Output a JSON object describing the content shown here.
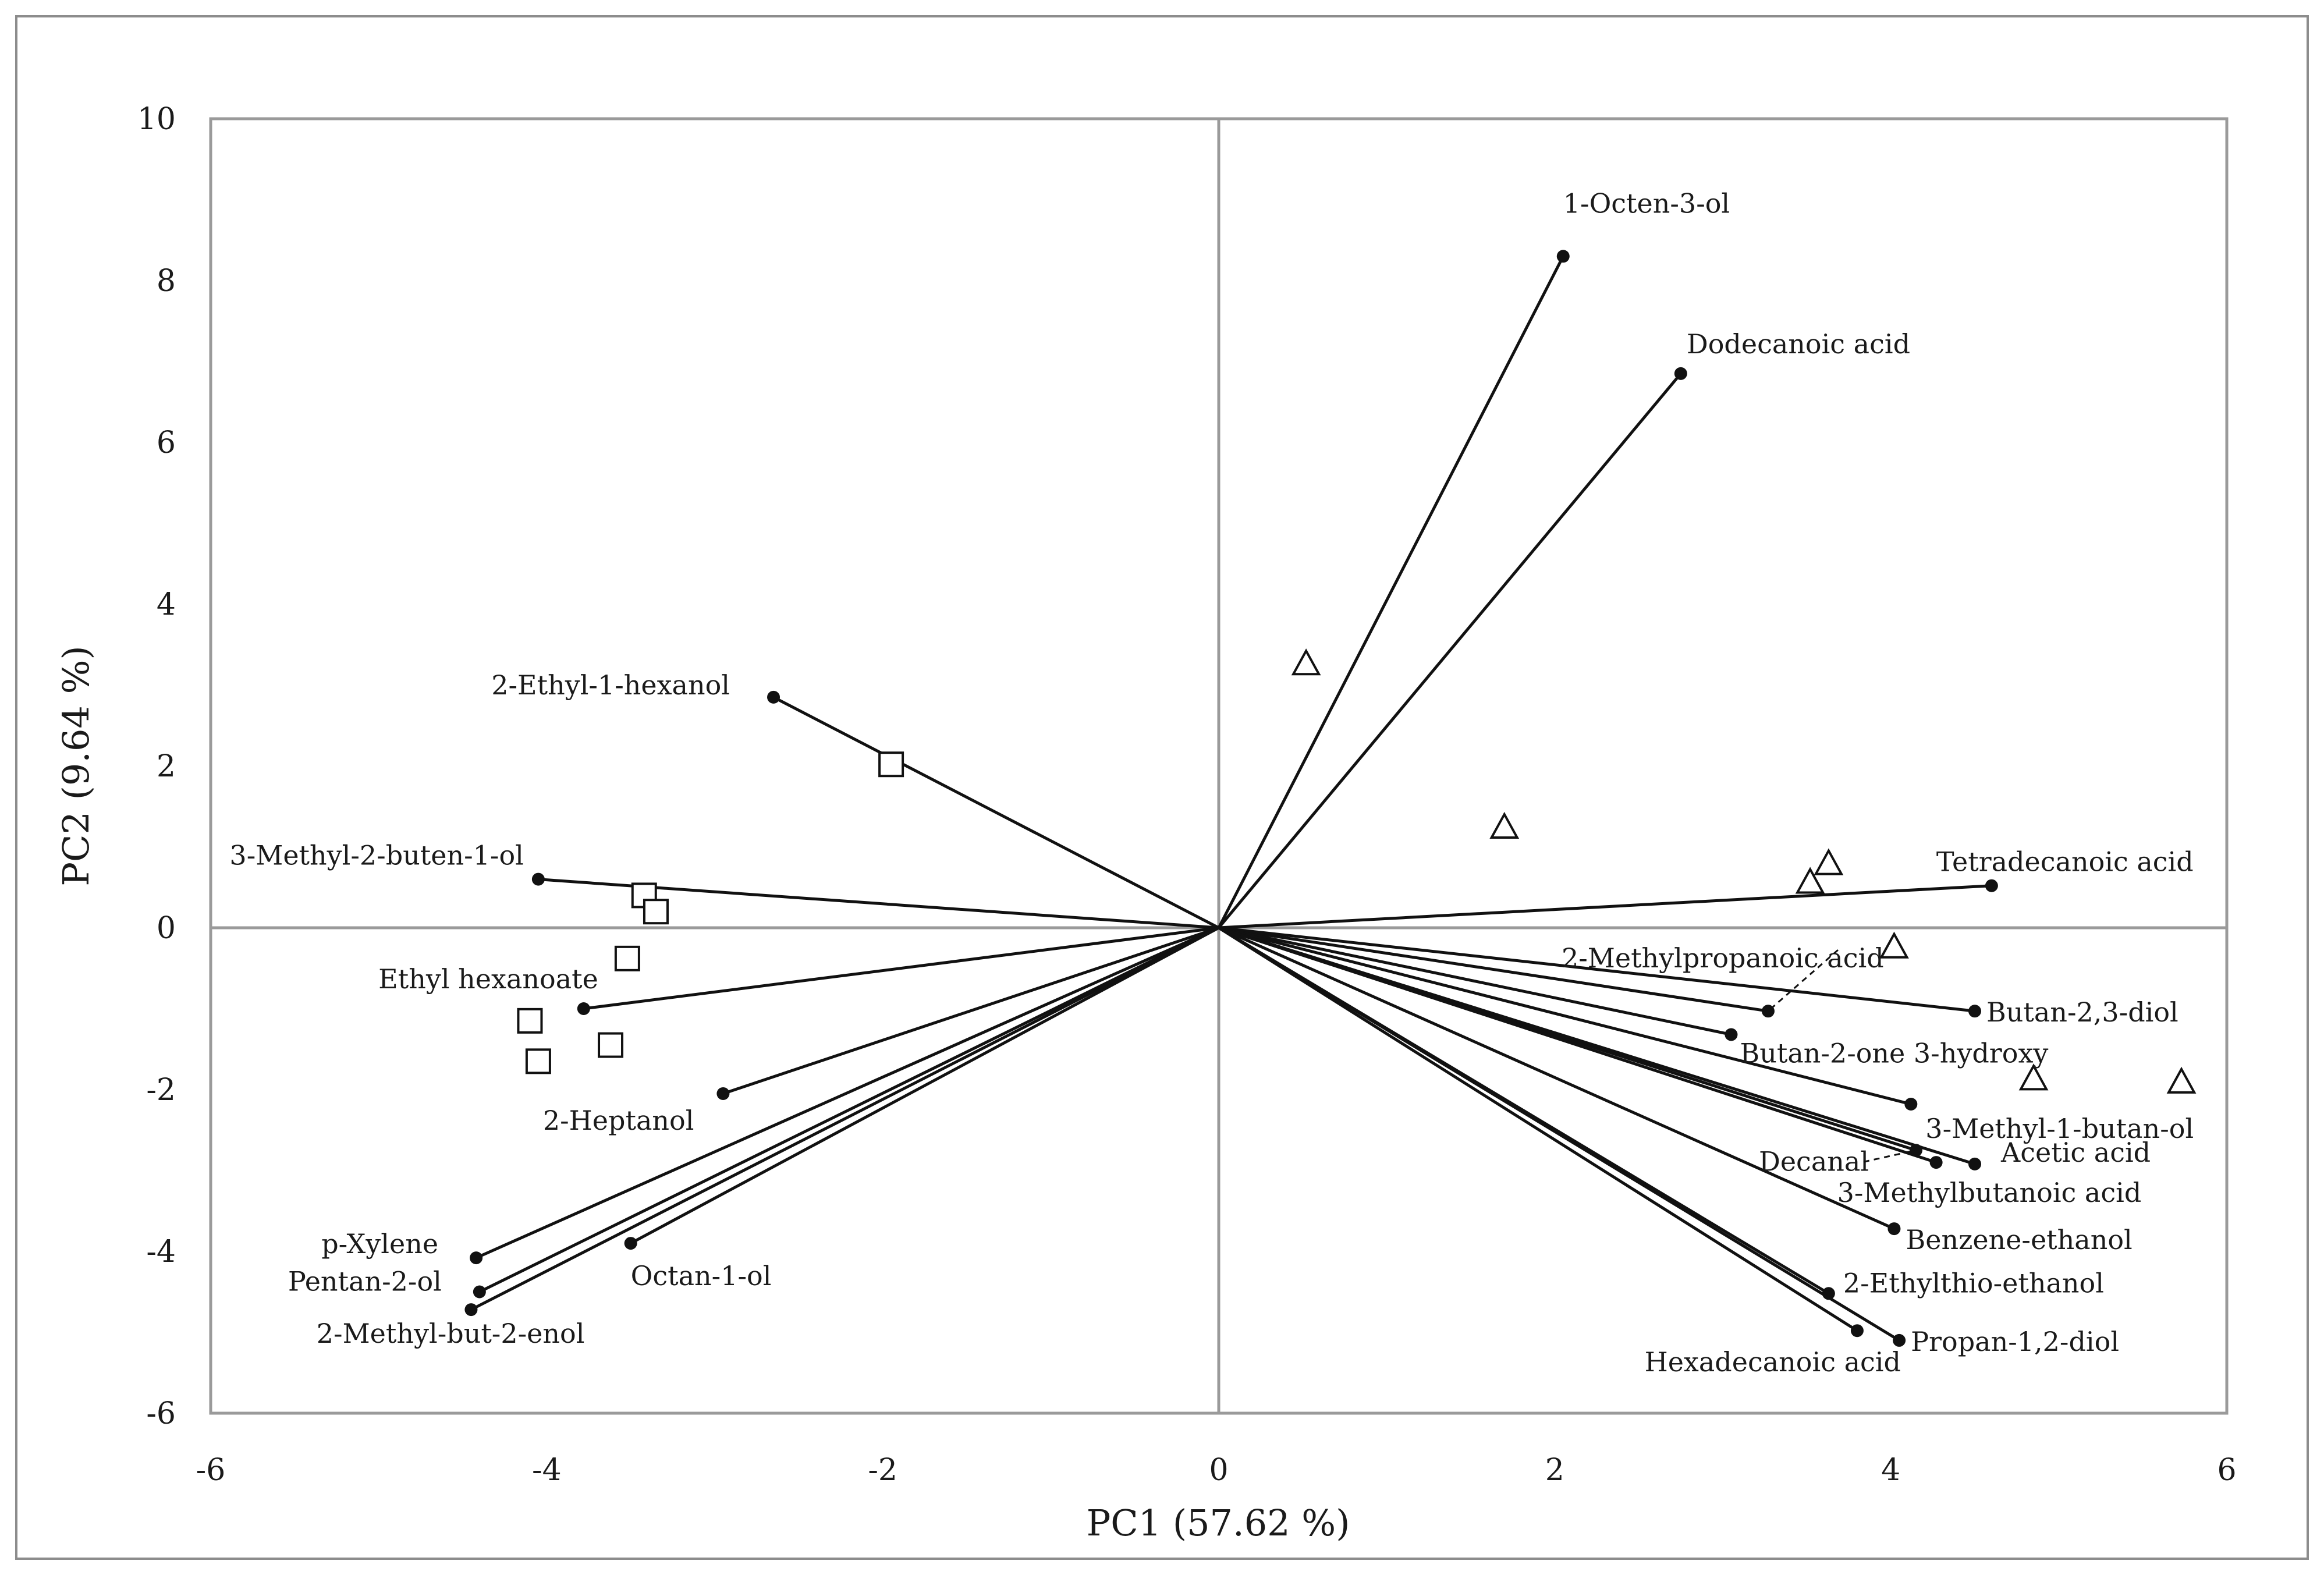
{
  "chart_data": {
    "type": "scatter",
    "subtype": "pca-biplot",
    "xlabel": "PC1 (57.62 %)",
    "ylabel": "PC2 (9.64 %)",
    "xlim": [
      -6,
      6
    ],
    "ylim": [
      -6,
      10
    ],
    "xticks": [
      -6,
      -4,
      -2,
      0,
      2,
      4,
      6
    ],
    "yticks": [
      -6,
      -4,
      -2,
      0,
      2,
      4,
      6,
      8,
      10
    ],
    "loadings": [
      {
        "name": "1-Octen-3-ol",
        "x": 2.05,
        "y": 8.3
      },
      {
        "name": "Dodecanoic acid",
        "x": 2.75,
        "y": 6.85
      },
      {
        "name": "Tetradecanoic acid",
        "x": 4.6,
        "y": 0.52
      },
      {
        "name": "2-Methylpropanoic acid",
        "x": 3.27,
        "y": -1.03
      },
      {
        "name": "Butan-2,3-diol",
        "x": 4.5,
        "y": -1.03
      },
      {
        "name": "Butan-2-one 3-hydroxy",
        "x": 3.05,
        "y": -1.32
      },
      {
        "name": "3-Methyl-1-butan-ol",
        "x": 4.12,
        "y": -2.18
      },
      {
        "name": "Decanal",
        "x": 4.15,
        "y": -2.75
      },
      {
        "name": "Acetic acid",
        "x": 4.5,
        "y": -2.92
      },
      {
        "name": "3-Methylbutanoic acid",
        "x": 4.27,
        "y": -2.9
      },
      {
        "name": "Benzene-ethanol",
        "x": 4.02,
        "y": -3.72
      },
      {
        "name": "2-Ethylthio-ethanol",
        "x": 3.63,
        "y": -4.52
      },
      {
        "name": "Propan-1,2-diol",
        "x": 4.05,
        "y": -5.1
      },
      {
        "name": "Hexadecanoic acid",
        "x": 3.8,
        "y": -4.98
      },
      {
        "name": "2-Ethyl-1-hexanol",
        "x": -2.65,
        "y": 2.85
      },
      {
        "name": "3-Methyl-2-buten-1-ol",
        "x": -4.05,
        "y": 0.6
      },
      {
        "name": "Ethyl hexanoate",
        "x": -3.78,
        "y": -1.0
      },
      {
        "name": "2-Heptanol",
        "x": -2.95,
        "y": -2.05
      },
      {
        "name": "p-Xylene",
        "x": -4.42,
        "y": -4.08
      },
      {
        "name": "Octan-1-ol",
        "x": -3.5,
        "y": -3.9
      },
      {
        "name": "Pentan-2-ol",
        "x": -4.4,
        "y": -4.5
      },
      {
        "name": "2-Methyl-but-2-enol",
        "x": -4.45,
        "y": -4.72
      }
    ],
    "series": [
      {
        "name": "squares",
        "marker": "square",
        "points": [
          [
            -1.95,
            2.02
          ],
          [
            -3.42,
            0.4
          ],
          [
            -3.35,
            0.2
          ],
          [
            -3.52,
            -0.38
          ],
          [
            -4.1,
            -1.15
          ],
          [
            -4.05,
            -1.65
          ],
          [
            -3.62,
            -1.45
          ]
        ]
      },
      {
        "name": "triangles",
        "marker": "triangle",
        "points": [
          [
            0.52,
            3.25
          ],
          [
            1.7,
            1.23
          ],
          [
            3.63,
            0.78
          ],
          [
            3.52,
            0.55
          ],
          [
            4.02,
            -0.25
          ],
          [
            4.85,
            -1.88
          ],
          [
            5.73,
            -1.92
          ]
        ]
      }
    ]
  }
}
